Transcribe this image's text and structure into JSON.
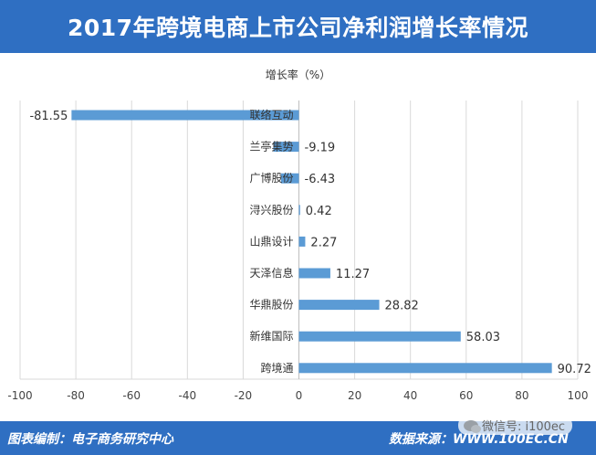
{
  "header": {
    "title": "2017年跨境电商上市公司净利润增长率情况"
  },
  "chart_data": {
    "type": "bar",
    "orientation": "horizontal",
    "title": "2017年跨境电商上市公司净利润增长率情况",
    "xlabel": "增长率（%）",
    "ylabel": "",
    "categories": [
      "联络互动",
      "兰亭集势",
      "广博股份",
      "浔兴股份",
      "山鼎设计",
      "天泽信息",
      "华鼎股份",
      "新维国际",
      "跨境通"
    ],
    "values": [
      -81.55,
      -9.19,
      -6.43,
      0.42,
      2.27,
      11.27,
      28.82,
      58.03,
      90.72
    ],
    "value_labels": [
      "-81.55",
      "-9.19",
      "-6.43",
      "0.42",
      "2.27",
      "11.27",
      "28.82",
      "58.03",
      "90.72"
    ],
    "xlim": [
      -100,
      100
    ],
    "xticks": [
      "-100",
      "-80",
      "-60",
      "-40",
      "-20",
      "0",
      "20",
      "40",
      "60",
      "80",
      "100"
    ],
    "grid": "vertical",
    "bar_color": "#5b9bd5"
  },
  "footer": {
    "left": "图表编制：电子商务研究中心",
    "right": "数据来源：WWW.100EC.CN",
    "wechat": "微信号: i100ec"
  },
  "colors": {
    "title_bg": "#2f6fc2",
    "bar": "#5b9bd5"
  }
}
